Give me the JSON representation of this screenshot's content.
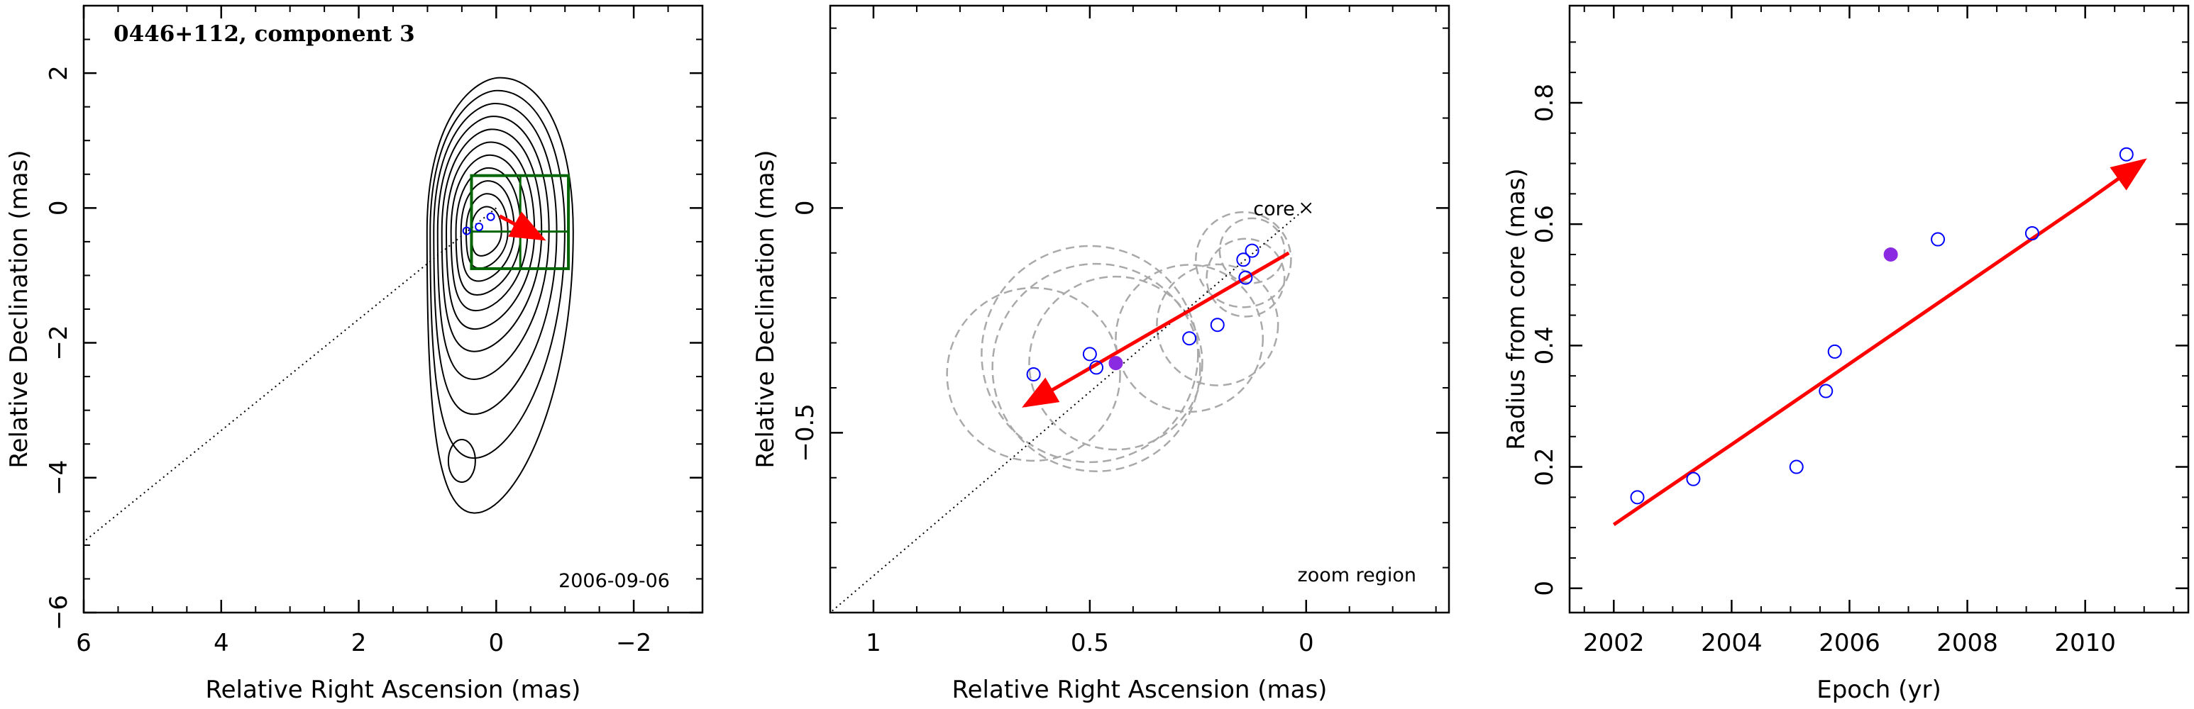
{
  "chart_data": [
    {
      "type": "contour",
      "title": "0446+112, component 3",
      "date_label": "2006-09-06",
      "xlabel": "Relative Right Ascension (mas)",
      "ylabel": "Relative Declination (mas)",
      "xlim": [
        6,
        -3
      ],
      "ylim": [
        -6,
        3
      ],
      "xticks": [
        6,
        4,
        2,
        0,
        -2
      ],
      "xtick_labels": [
        "6",
        "4",
        "2",
        "0",
        "−2"
      ],
      "yticks": [
        -6,
        -4,
        -2,
        0,
        2
      ],
      "ytick_labels": [
        "−6",
        "−4",
        "−2",
        "0",
        "2"
      ],
      "contour_peak": [
        0.15,
        -0.35
      ],
      "contour_levels": 11,
      "secondary_blob": [
        0.5,
        -3.75
      ],
      "zoom_box": {
        "x": [
          0.36,
          -1.05
        ],
        "y": [
          0.48,
          -0.9
        ]
      },
      "zoom_lines": {
        "x": [
          0.36,
          -0.35,
          -1.05
        ],
        "y": [
          0.48,
          -0.35,
          -0.9
        ]
      },
      "motion_arrow": {
        "from": [
          -0.05,
          -0.12
        ],
        "to": [
          -0.68,
          -0.46
        ]
      },
      "trajectory_line": {
        "from": [
          0.0,
          0.0
        ],
        "to": [
          6.0,
          -4.95
        ]
      },
      "points": [
        {
          "x": 0.08,
          "y": -0.13
        },
        {
          "x": 0.25,
          "y": -0.28
        },
        {
          "x": 0.43,
          "y": -0.34
        }
      ],
      "colors": {
        "contour": "#000000",
        "zoom_box": "#006400",
        "arrow": "#ff0000",
        "point": "#0000ff"
      }
    },
    {
      "type": "scatter",
      "xlabel": "Relative Right Ascension (mas)",
      "ylabel": "Relative Declination (mas)",
      "xlim": [
        1.1,
        -0.33
      ],
      "ylim": [
        -0.9,
        0.45
      ],
      "xticks": [
        1,
        0.5,
        0
      ],
      "xtick_labels": [
        "1",
        "0.5",
        "0"
      ],
      "yticks": [
        -0.5,
        0
      ],
      "ytick_labels": [
        "−0.5",
        "0"
      ],
      "core_label": "core",
      "core_position": [
        0,
        0
      ],
      "zoom_label": "zoom region",
      "points": [
        {
          "x": 0.63,
          "y": -0.37
        },
        {
          "x": 0.5,
          "y": -0.325
        },
        {
          "x": 0.485,
          "y": -0.355
        },
        {
          "x": 0.27,
          "y": -0.29
        },
        {
          "x": 0.205,
          "y": -0.26
        },
        {
          "x": 0.145,
          "y": -0.115
        },
        {
          "x": 0.125,
          "y": -0.095
        },
        {
          "x": 0.14,
          "y": -0.155
        }
      ],
      "highlight_point": {
        "x": 0.44,
        "y": -0.345
      },
      "uncertainty_circles": [
        {
          "cx": 0.63,
          "cy": -0.37,
          "r": 0.2
        },
        {
          "cx": 0.5,
          "cy": -0.325,
          "r": 0.25
        },
        {
          "cx": 0.485,
          "cy": -0.355,
          "r": 0.24
        },
        {
          "cx": 0.44,
          "cy": -0.345,
          "r": 0.2
        },
        {
          "cx": 0.27,
          "cy": -0.29,
          "r": 0.17
        },
        {
          "cx": 0.205,
          "cy": -0.26,
          "r": 0.14
        },
        {
          "cx": 0.145,
          "cy": -0.115,
          "r": 0.11
        },
        {
          "cx": 0.125,
          "cy": -0.095,
          "r": 0.075
        },
        {
          "cx": 0.14,
          "cy": -0.155,
          "r": 0.09
        }
      ],
      "motion_arrow": {
        "from": [
          0.04,
          -0.1
        ],
        "to": [
          0.65,
          -0.44
        ]
      },
      "trajectory_line": {
        "from": [
          0,
          0
        ],
        "to": [
          1.1,
          -0.9
        ]
      },
      "colors": {
        "point": "#0000ff",
        "highlight": "#8a2be2",
        "arrow": "#ff0000",
        "circle": "#a9a9a9"
      }
    },
    {
      "type": "scatter",
      "xlabel": "Epoch (yr)",
      "ylabel": "Radius from core (mas)",
      "xlim": [
        2001.25,
        2011.75
      ],
      "ylim": [
        -0.04,
        0.96
      ],
      "xticks": [
        2002,
        2004,
        2006,
        2008,
        2010
      ],
      "xtick_labels": [
        "2002",
        "2004",
        "2006",
        "2008",
        "2010"
      ],
      "yticks": [
        0,
        0.2,
        0.4,
        0.6,
        0.8
      ],
      "ytick_labels": [
        "0",
        "0.2",
        "0.4",
        "0.6",
        "0.8"
      ],
      "x": [
        2002.4,
        2003.35,
        2005.1,
        2005.6,
        2005.75,
        2007.5,
        2009.1,
        2010.7
      ],
      "y": [
        0.15,
        0.18,
        0.2,
        0.325,
        0.39,
        0.575,
        0.585,
        0.715
      ],
      "highlight_point": {
        "x": 2006.7,
        "y": 0.55
      },
      "fit_curve": {
        "x": [
          2002.0,
          2004.0,
          2006.0,
          2008.0,
          2010.0,
          2011.0
        ],
        "y": [
          0.105,
          0.237,
          0.37,
          0.503,
          0.636,
          0.705
        ]
      },
      "colors": {
        "point": "#0000ff",
        "highlight": "#8a2be2",
        "fit": "#ff0000"
      }
    }
  ]
}
